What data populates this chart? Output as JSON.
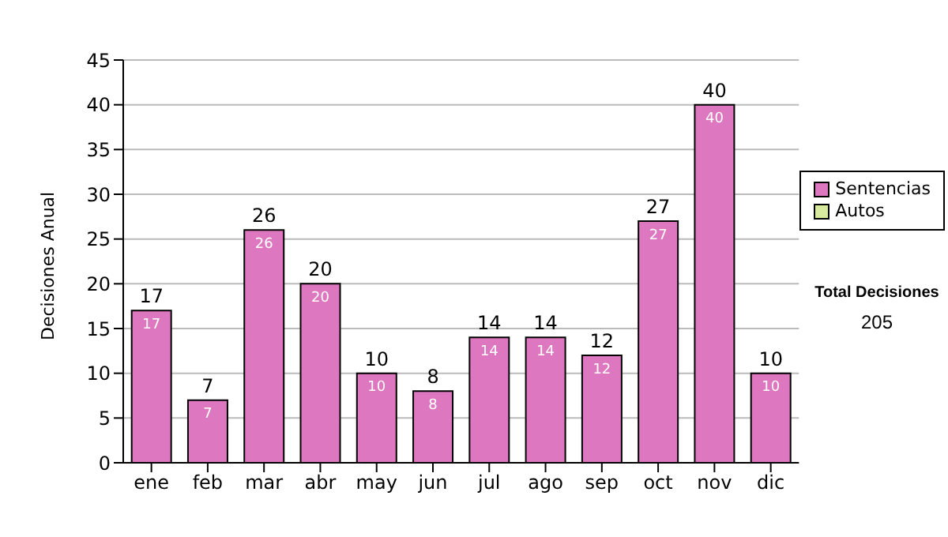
{
  "chart_data": {
    "type": "bar",
    "ylabel": "Decisiones Anual",
    "categories": [
      "ene",
      "feb",
      "mar",
      "abr",
      "may",
      "jun",
      "jul",
      "ago",
      "sep",
      "oct",
      "nov",
      "dic"
    ],
    "series": [
      {
        "name": "Sentencias",
        "color": "#dd77c0",
        "values": [
          17,
          7,
          26,
          20,
          10,
          8,
          14,
          14,
          12,
          27,
          40,
          10
        ],
        "value_labels": [
          "17",
          "7",
          "26",
          "20",
          "10",
          "8",
          "14",
          "14",
          "12",
          "27",
          "40",
          "10"
        ]
      },
      {
        "name": "Autos",
        "color": "#d8eaa0",
        "values": [
          0,
          0,
          0,
          0,
          0,
          0,
          0,
          0,
          0,
          0,
          0,
          0
        ]
      }
    ],
    "stacked": true,
    "totals": [
      "17",
      "7",
      "26",
      "20",
      "10",
      "8",
      "14",
      "14",
      "12",
      "27",
      "40",
      "10"
    ],
    "ylim": [
      0,
      45
    ],
    "yticks": [
      0,
      5,
      10,
      15,
      20,
      25,
      30,
      35,
      40,
      45
    ],
    "grid": "y",
    "legend": "right",
    "annotations": [
      "Total Decisiones",
      "205"
    ]
  }
}
